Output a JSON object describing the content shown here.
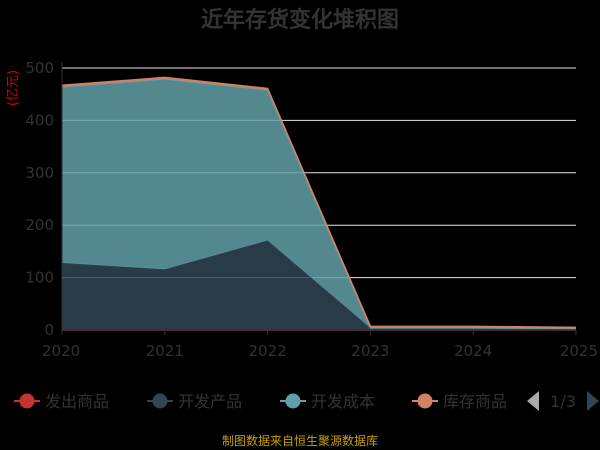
{
  "chart_data": {
    "type": "area",
    "stacked": true,
    "title": "近年存货变化堆积图",
    "unit_label": "(亿元)",
    "x": [
      "2020",
      "2021",
      "2022",
      "2023",
      "2024",
      "2025"
    ],
    "ylim": [
      0,
      500
    ],
    "yticks": [
      0,
      100,
      200,
      300,
      400,
      500
    ],
    "grid": true,
    "series": [
      {
        "name": "发出商品",
        "color": "#c23531",
        "values": [
          0,
          0,
          0,
          0,
          0,
          0
        ]
      },
      {
        "name": "开发产品",
        "color": "#2f4554",
        "values": [
          128,
          116,
          171,
          4,
          4,
          3
        ]
      },
      {
        "name": "开发成本",
        "color": "#61a0a8",
        "values": [
          336,
          363,
          287,
          0,
          0,
          0
        ]
      },
      {
        "name": "库存商品",
        "color": "#d48265",
        "values": [
          3,
          3,
          3,
          3,
          3,
          2
        ]
      }
    ],
    "legend": {
      "position": "bottom",
      "page": "1/3"
    },
    "source": "制图数据来自恒生聚源数据库"
  }
}
